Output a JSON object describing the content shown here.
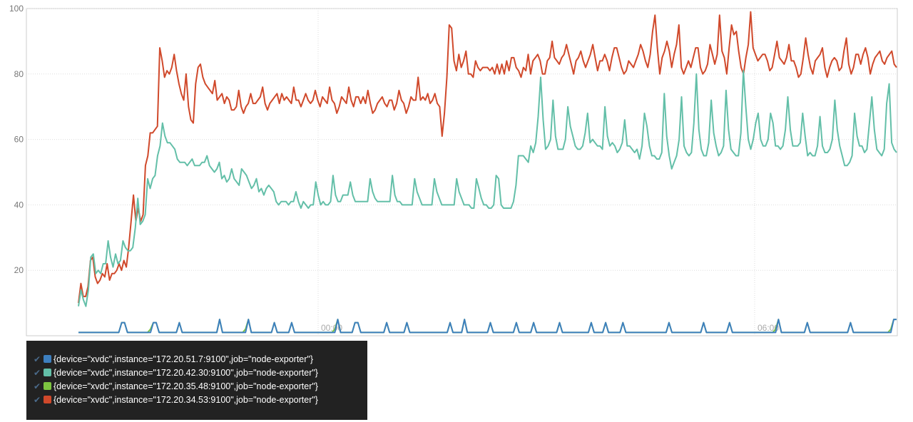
{
  "chart_data": {
    "type": "line",
    "ylim": [
      0,
      100
    ],
    "y_ticks": [
      "20",
      "40",
      "60",
      "80",
      "100"
    ],
    "x_ticks": [
      "00:00",
      "06:00"
    ],
    "grid": true,
    "legend_placement": "bottom-left",
    "series": [
      {
        "name": "{device=\"xvdc\",instance=\"172.20.51.7:9100\",job=\"node-exporter\"}",
        "color": "#3d7fbf",
        "values": [
          1,
          1,
          1,
          1,
          1,
          1,
          1,
          1,
          1,
          1,
          1,
          1,
          1,
          1,
          1,
          4,
          4,
          1,
          1,
          1,
          1,
          1,
          1,
          1,
          1,
          1,
          4,
          4,
          1,
          1,
          1,
          1,
          1,
          1,
          1,
          4,
          1,
          1,
          1,
          1,
          1,
          1,
          1,
          1,
          1,
          1,
          1,
          1,
          1,
          5,
          1,
          1,
          1,
          1,
          1,
          1,
          1,
          1,
          1,
          5,
          1,
          1,
          1,
          1,
          1,
          1,
          1,
          1,
          4,
          1,
          1,
          1,
          1,
          1,
          4,
          1,
          1,
          1,
          1,
          1,
          1,
          1,
          1,
          1,
          1,
          1,
          1,
          1,
          1,
          1,
          5,
          1,
          1,
          1,
          1,
          1,
          4,
          4,
          1,
          1,
          1,
          1,
          1,
          1,
          1,
          1,
          1,
          4,
          1,
          1,
          1,
          1,
          1,
          1,
          4,
          1,
          1,
          1,
          1,
          1,
          1,
          1,
          1,
          1,
          1,
          1,
          1,
          1,
          1,
          4,
          1,
          1,
          1,
          1,
          5,
          1,
          1,
          1,
          1,
          1,
          1,
          1,
          1,
          4,
          1,
          1,
          1,
          1,
          1,
          1,
          1,
          1,
          4,
          1,
          1,
          1,
          1,
          1,
          4,
          1,
          1,
          1,
          1,
          1,
          1,
          1,
          1,
          4,
          1,
          1,
          1,
          1,
          1,
          1,
          1,
          1,
          1,
          1,
          4,
          1,
          1,
          1,
          1,
          4,
          1,
          1,
          1,
          1,
          1,
          4,
          1,
          1,
          1,
          1,
          1,
          1,
          1,
          1,
          1,
          1,
          1,
          1,
          1,
          1,
          1,
          4,
          1,
          1,
          1,
          1,
          1,
          1,
          1,
          1,
          1,
          1,
          1,
          4,
          1,
          1,
          1,
          1,
          1,
          1,
          1,
          1,
          4,
          1,
          1,
          1,
          1,
          1,
          1,
          1,
          1,
          1,
          1,
          1,
          1,
          1,
          1,
          1,
          1,
          5,
          1,
          1,
          1,
          1,
          1,
          1,
          1,
          1,
          1,
          4,
          1,
          1,
          1,
          1,
          1,
          1,
          1,
          1,
          1,
          1,
          1,
          1,
          1,
          1,
          4,
          1,
          1,
          1,
          1,
          1,
          1,
          1,
          1,
          1,
          1,
          1,
          1,
          1,
          1,
          5,
          5
        ],
        "values_compressed": false
      },
      {
        "name": "{device=\"xvdc\",instance=\"172.20.42.30:9100\",job=\"node-exporter\"}",
        "color": "#63bfa8",
        "values": [
          9,
          14,
          11,
          9,
          14,
          24,
          25,
          19,
          20,
          19,
          22,
          22,
          29,
          24,
          21,
          25,
          22,
          23,
          29,
          27,
          26,
          26,
          27,
          33,
          42,
          34,
          35,
          37,
          48,
          45,
          48,
          49,
          55,
          58,
          65,
          61,
          59,
          59,
          58,
          57,
          54,
          53,
          53,
          53,
          52,
          53,
          54,
          52,
          52,
          52,
          53,
          53,
          55,
          52,
          51,
          50,
          51,
          53,
          48,
          49,
          47,
          48,
          51,
          48,
          47,
          46,
          51,
          50,
          49,
          47,
          45,
          46,
          48,
          44,
          45,
          43,
          45,
          46,
          45,
          44,
          41,
          40,
          41,
          41,
          41,
          40,
          41,
          41,
          44,
          41,
          39,
          41,
          40,
          39,
          40,
          40,
          47,
          43,
          40,
          41,
          40,
          40,
          41,
          49,
          43,
          41,
          41,
          43,
          43,
          43,
          47,
          43,
          41,
          41,
          41,
          41,
          41,
          41,
          48,
          44,
          42,
          41,
          41,
          41,
          41,
          41,
          41,
          49,
          43,
          41,
          41,
          40,
          40,
          40,
          40,
          40,
          48,
          44,
          42,
          40,
          40,
          40,
          40,
          40,
          48,
          44,
          42,
          40,
          40,
          40,
          40,
          40,
          40,
          48,
          44,
          42,
          40,
          40,
          40,
          39,
          39,
          48,
          45,
          42,
          40,
          40,
          39,
          39,
          40,
          49,
          48,
          40,
          39,
          39,
          39,
          39,
          41,
          46,
          55,
          55,
          55,
          54,
          53,
          58,
          56,
          59,
          67,
          79,
          66,
          57,
          58,
          60,
          72,
          61,
          57,
          57,
          57,
          60,
          70,
          64,
          61,
          58,
          57,
          57,
          58,
          62,
          68,
          59,
          60,
          59,
          58,
          58,
          57,
          70,
          61,
          58,
          59,
          58,
          56,
          57,
          59,
          66,
          58,
          58,
          57,
          56,
          57,
          54,
          58,
          68,
          64,
          58,
          55,
          55,
          54,
          54,
          56,
          74,
          61,
          55,
          51,
          53,
          55,
          60,
          73,
          58,
          56,
          55,
          56,
          65,
          80,
          63,
          57,
          55,
          55,
          59,
          72,
          62,
          58,
          55,
          56,
          58,
          75,
          63,
          57,
          56,
          55,
          55,
          62,
          81,
          70,
          60,
          57,
          60,
          65,
          68,
          60,
          58,
          58,
          60,
          68,
          65,
          58,
          58,
          57,
          58,
          63,
          73,
          63,
          58,
          58,
          58,
          59,
          68,
          61,
          55,
          56,
          55,
          55,
          58,
          67,
          58,
          56,
          56,
          57,
          60,
          72,
          63,
          58,
          55,
          52,
          52,
          53,
          55,
          68,
          61,
          58,
          58,
          56,
          57,
          65,
          73,
          63,
          57,
          56,
          55,
          57,
          71,
          77,
          59,
          57,
          56
        ]
      },
      {
        "name": "{device=\"xvdc\",instance=\"172.20.35.48:9100\",job=\"node-exporter\"}",
        "color": "#7dc540",
        "values": [
          1,
          1,
          1,
          1,
          1,
          1,
          1,
          1,
          1,
          1,
          1,
          1,
          1,
          1,
          1,
          4,
          4,
          1,
          1,
          1,
          1,
          1,
          1,
          1,
          1,
          2,
          4,
          4,
          1,
          1,
          1,
          1,
          1,
          1,
          1,
          4,
          1,
          1,
          1,
          1,
          1,
          1,
          1,
          1,
          1,
          1,
          1,
          1,
          1,
          5,
          1,
          1,
          1,
          1,
          1,
          1,
          1,
          1,
          2,
          5,
          1,
          1,
          1,
          1,
          1,
          1,
          1,
          1,
          4,
          1,
          1,
          1,
          1,
          1,
          4,
          1,
          1,
          1,
          1,
          1,
          1,
          1,
          1,
          1,
          1,
          1,
          1,
          1,
          1,
          2,
          5,
          1,
          1,
          1,
          1,
          1,
          4,
          4,
          1,
          1,
          1,
          1,
          1,
          1,
          1,
          1,
          1,
          4,
          1,
          1,
          1,
          1,
          1,
          1,
          4,
          1,
          1,
          1,
          1,
          1,
          1,
          1,
          1,
          1,
          1,
          1,
          1,
          1,
          1,
          4,
          1,
          1,
          1,
          1,
          5,
          1,
          1,
          1,
          1,
          1,
          1,
          1,
          1,
          4,
          1,
          1,
          1,
          1,
          1,
          1,
          1,
          1,
          4,
          1,
          1,
          1,
          1,
          1,
          4,
          1,
          1,
          1,
          1,
          1,
          1,
          1,
          1,
          4,
          1,
          1,
          1,
          1,
          1,
          1,
          1,
          1,
          1,
          1,
          4,
          1,
          1,
          1,
          1,
          4,
          1,
          1,
          1,
          1,
          1,
          4,
          1,
          1,
          1,
          1,
          1,
          1,
          1,
          1,
          1,
          1,
          1,
          1,
          1,
          1,
          1,
          4,
          1,
          1,
          1,
          1,
          1,
          1,
          1,
          1,
          1,
          1,
          1,
          4,
          1,
          1,
          1,
          1,
          1,
          1,
          1,
          1,
          4,
          1,
          1,
          1,
          1,
          1,
          1,
          1,
          1,
          1,
          1,
          1,
          1,
          1,
          1,
          1,
          2,
          5,
          1,
          1,
          1,
          1,
          1,
          1,
          1,
          1,
          1,
          4,
          1,
          1,
          1,
          1,
          1,
          1,
          1,
          1,
          1,
          1,
          1,
          1,
          1,
          1,
          4,
          1,
          1,
          1,
          1,
          1,
          1,
          1,
          1,
          1,
          1,
          1,
          1,
          1,
          2,
          5,
          5
        ]
      },
      {
        "name": "{device=\"xvdc\",instance=\"172.20.34.53:9100\",job=\"node-exporter\"}",
        "color": "#d0492b",
        "values": [
          10,
          16,
          12,
          12,
          15,
          23,
          24,
          18,
          16,
          17,
          19,
          18,
          22,
          17,
          19,
          19,
          20,
          22,
          20,
          23,
          21,
          27,
          35,
          43,
          35,
          39,
          35,
          37,
          52,
          55,
          62,
          62,
          63,
          64,
          88,
          84,
          79,
          81,
          80,
          82,
          86,
          81,
          77,
          74,
          72,
          80,
          70,
          66,
          65,
          77,
          82,
          83,
          79,
          77,
          76,
          75,
          74,
          78,
          72,
          73,
          74,
          71,
          73,
          72,
          69,
          69,
          70,
          75,
          70,
          68,
          70,
          71,
          74,
          71,
          71,
          72,
          73,
          76,
          71,
          69,
          71,
          72,
          73,
          74,
          71,
          74,
          72,
          73,
          72,
          71,
          76,
          72,
          72,
          70,
          72,
          74,
          72,
          71,
          72,
          75,
          72,
          70,
          73,
          72,
          71,
          76,
          72,
          71,
          68,
          70,
          73,
          72,
          71,
          76,
          72,
          70,
          73,
          73,
          71,
          73,
          71,
          75,
          71,
          68,
          69,
          71,
          72,
          73,
          71,
          70,
          72,
          72,
          69,
          71,
          75,
          72,
          71,
          68,
          70,
          73,
          72,
          72,
          79,
          72,
          73,
          72,
          74,
          71,
          72,
          74,
          71,
          70,
          61,
          68,
          79,
          95,
          94,
          84,
          81,
          86,
          82,
          84,
          87,
          80,
          80,
          79,
          84,
          82,
          81,
          82,
          82,
          82,
          81,
          82,
          80,
          83,
          80,
          83,
          80,
          84,
          81,
          85,
          85,
          82,
          81,
          79,
          82,
          81,
          86,
          80,
          84,
          85,
          86,
          84,
          80,
          80,
          84,
          85,
          90,
          85,
          84,
          83,
          85,
          86,
          89,
          86,
          83,
          80,
          84,
          85,
          87,
          84,
          82,
          84,
          86,
          89,
          85,
          81,
          84,
          84,
          86,
          84,
          81,
          85,
          88,
          88,
          85,
          82,
          80,
          81,
          84,
          83,
          82,
          84,
          86,
          89,
          87,
          84,
          82,
          86,
          93,
          98,
          88,
          80,
          85,
          87,
          90,
          87,
          82,
          86,
          89,
          95,
          82,
          80,
          82,
          84,
          82,
          85,
          88,
          88,
          82,
          80,
          81,
          83,
          89,
          86,
          83,
          86,
          98,
          87,
          85,
          80,
          88,
          95,
          92,
          93,
          87,
          82,
          80,
          85,
          89,
          99,
          88,
          86,
          84,
          85,
          86,
          86,
          84,
          81,
          82,
          86,
          90,
          85,
          84,
          83,
          85,
          89,
          84,
          84,
          82,
          79,
          80,
          85,
          91,
          86,
          82,
          80,
          84,
          85,
          86,
          88,
          82,
          79,
          82,
          84,
          85,
          84,
          81,
          82,
          87,
          91,
          83,
          80,
          82,
          86,
          86,
          83,
          86,
          88,
          85,
          80,
          83,
          85,
          86,
          87,
          84,
          83,
          85,
          86,
          87,
          83,
          82
        ]
      }
    ]
  },
  "legend": {
    "check_glyph": "✔",
    "items": [
      {
        "label": "{device=\"xvdc\",instance=\"172.20.51.7:9100\",job=\"node-exporter\"}",
        "color": "#3d7fbf"
      },
      {
        "label": "{device=\"xvdc\",instance=\"172.20.42.30:9100\",job=\"node-exporter\"}",
        "color": "#63bfa8"
      },
      {
        "label": "{device=\"xvdc\",instance=\"172.20.35.48:9100\",job=\"node-exporter\"}",
        "color": "#7dc540"
      },
      {
        "label": "{device=\"xvdc\",instance=\"172.20.34.53:9100\",job=\"node-exporter\"}",
        "color": "#d0492b"
      }
    ]
  }
}
